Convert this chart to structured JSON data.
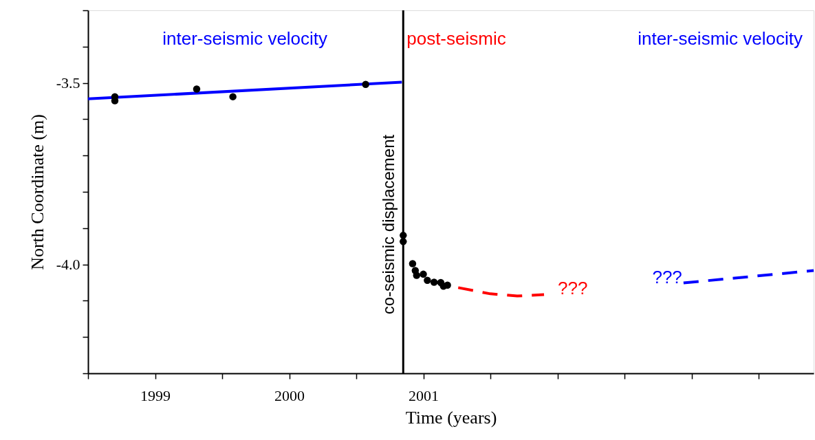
{
  "chart_data": {
    "type": "scatter",
    "xlabel": "Time (years)",
    "ylabel": "North Coordinate (m)",
    "xlim": [
      1998.5,
      2003.91
    ],
    "ylim": [
      -4.3,
      -3.3
    ],
    "xticks": [
      {
        "value": 1998.5,
        "label": null
      },
      1999,
      {
        "value": 1999.5,
        "label": null
      },
      2000,
      {
        "value": 2000.5,
        "label": null
      },
      2001,
      {
        "value": 2001.5,
        "label": null
      },
      {
        "value": 2002,
        "label": null
      },
      {
        "value": 2002.5,
        "label": null
      },
      {
        "value": 2003,
        "label": null
      },
      {
        "value": 2003.5,
        "label": null
      }
    ],
    "yticks": [
      {
        "value": -4.3,
        "label": null
      },
      {
        "value": -4.2,
        "label": null
      },
      {
        "value": -4.1,
        "label": null
      },
      {
        "value": -4.0,
        "label": "-4.0"
      },
      {
        "value": -3.9,
        "label": null
      },
      {
        "value": -3.8,
        "label": null
      },
      {
        "value": -3.7,
        "label": null
      },
      {
        "value": -3.6,
        "label": null
      },
      {
        "value": -3.5,
        "label": "-3.5"
      },
      {
        "value": -3.4,
        "label": null
      },
      {
        "value": -3.3,
        "label": null
      }
    ],
    "grid": false,
    "series": [
      {
        "color": "#000000",
        "marker": "circle",
        "x": [
          1998.7,
          1998.7,
          1999.31,
          1999.58,
          2000.57,
          2000.85,
          2000.85,
          2000.92,
          2000.94,
          2000.95,
          2001.0,
          2001.03,
          2001.08,
          2001.13,
          2001.15,
          2001.18
        ],
        "values": [
          -3.538,
          -3.549,
          -3.517,
          -3.538,
          -3.504,
          -3.92,
          -3.937,
          -3.998,
          -4.017,
          -4.03,
          -4.027,
          -4.044,
          -4.049,
          -4.05,
          -4.06,
          -4.057
        ]
      },
      {
        "type": "line",
        "color": "#0000ff",
        "line_style": "solid",
        "x": [
          1998.5,
          2000.84
        ],
        "values": [
          -3.544,
          -3.498
        ]
      },
      {
        "type": "line",
        "color": "#ff0000",
        "line_style": "dashed",
        "x": [
          2001.26,
          2001.5,
          2001.7,
          2001.9
        ],
        "values": [
          -4.064,
          -4.081,
          -4.087,
          -4.083
        ]
      },
      {
        "type": "line",
        "color": "#0000ff",
        "line_style": "dashed",
        "x": [
          2002.94,
          2003.91
        ],
        "values": [
          -4.051,
          -4.017
        ]
      }
    ],
    "ref_lines": [
      {
        "axis": "x",
        "value": 2000.85,
        "label": "co-seismic displacement",
        "color": "#000000"
      }
    ],
    "annotations": [
      "inter-seismic velocity",
      "post-seismic",
      "inter-seismic velocity",
      {
        "text": "???",
        "x": 2001.9,
        "y": -4.083
      },
      {
        "text": "???",
        "x": 2002.94,
        "y": -4.051
      }
    ]
  }
}
